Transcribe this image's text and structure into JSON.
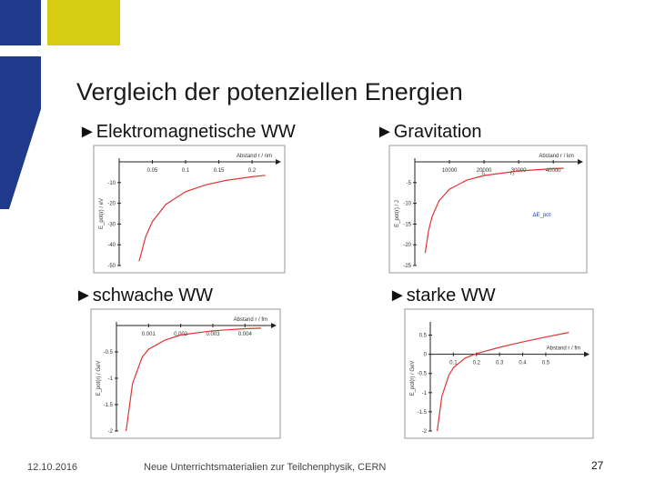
{
  "slide": {
    "title": "Vergleich der potenziellen Energien",
    "headings": [
      "►Elektromagnetische WW",
      "►Gravitation",
      "►schwache WW",
      "►starke WW"
    ],
    "footer": {
      "date": "12.10.2016",
      "source": "Neue Unterrichtsmaterialien zur Teilchenphysik, CERN",
      "page": "27"
    }
  },
  "chart_data": [
    {
      "type": "line",
      "xlabel": "Abstand r / nm",
      "ylabel": "E_pot(r) / eV",
      "x": [
        0.03,
        0.04,
        0.05,
        0.07,
        0.1,
        0.13,
        0.16,
        0.2,
        0.22
      ],
      "series": [
        {
          "color": "#e03434",
          "values": [
            -48,
            -36,
            -28.8,
            -20.6,
            -14.4,
            -11.1,
            -9,
            -7.2,
            -6.5
          ]
        }
      ],
      "xlim": [
        0,
        0.23
      ],
      "ylim": [
        0,
        -50
      ],
      "xticks": [
        0.05,
        0.1,
        0.15,
        0.2
      ],
      "yticks": [
        -10,
        -20,
        -30,
        -40,
        -50
      ]
    },
    {
      "type": "line",
      "xlabel": "Abstand r / km",
      "ylabel": "E_pot(r) / J",
      "annotations": [
        "r₁",
        "r₂",
        "ΔE_pot"
      ],
      "x": [
        3000,
        4000,
        5000,
        7000,
        10000,
        15000,
        20000,
        30000,
        40000,
        43000
      ],
      "series": [
        {
          "color": "#e03434",
          "values": [
            -22,
            -16.5,
            -13.2,
            -9.4,
            -6.6,
            -4.4,
            -3.3,
            -2.2,
            -1.65,
            -1.53
          ]
        }
      ],
      "xlim": [
        0,
        46000
      ],
      "ylim": [
        0,
        -25
      ],
      "xticks": [
        10000,
        20000,
        30000,
        40000
      ],
      "yticks": [
        -5,
        -10,
        -15,
        -20,
        -25
      ]
    },
    {
      "type": "line",
      "xlabel": "Abstand r / fm",
      "ylabel": "E_pot(r) / GeV",
      "x": [
        0.0003,
        0.0005,
        0.0008,
        0.001,
        0.0015,
        0.002,
        0.003,
        0.004,
        0.0045
      ],
      "series": [
        {
          "color": "#e03434",
          "values": [
            -2,
            -1.1,
            -0.6,
            -0.45,
            -0.28,
            -0.18,
            -0.1,
            -0.06,
            -0.05
          ]
        }
      ],
      "xlim": [
        0,
        0.0047
      ],
      "ylim": [
        0,
        -2
      ],
      "xticks": [
        0.001,
        0.002,
        0.003,
        0.004
      ],
      "yticks": [
        -0.5,
        -1,
        -1.5,
        -2
      ]
    },
    {
      "type": "line",
      "xlabel": "Abstand r / fm",
      "ylabel": "E_pot(r) / GeV",
      "x": [
        0.03,
        0.05,
        0.08,
        0.1,
        0.15,
        0.2,
        0.3,
        0.4,
        0.5,
        0.6
      ],
      "series": [
        {
          "color": "#e03434",
          "values": [
            -2,
            -1.1,
            -0.55,
            -0.35,
            -0.1,
            0.02,
            0.18,
            0.32,
            0.45,
            0.57
          ]
        }
      ],
      "xlim": [
        0,
        0.65
      ],
      "ylim": [
        0.75,
        -2
      ],
      "xticks": [
        0.1,
        0.2,
        0.3,
        0.4,
        0.5
      ],
      "yticks": [
        0.5,
        0,
        -0.5,
        -1,
        -1.5,
        -2
      ]
    }
  ]
}
